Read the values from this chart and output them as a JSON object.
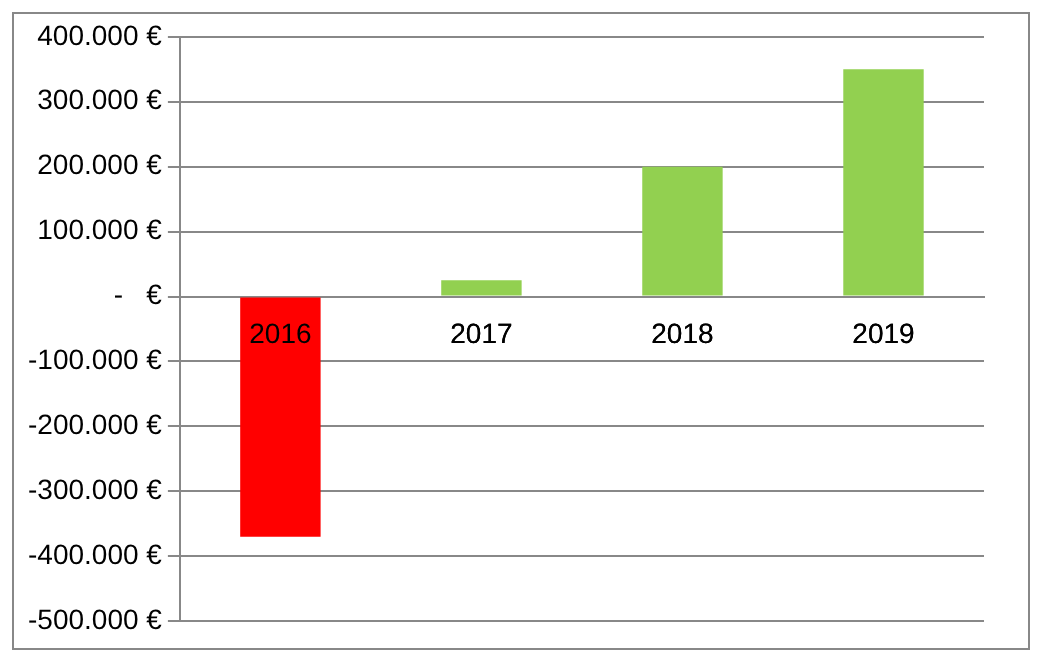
{
  "chart_data": {
    "type": "bar",
    "categories": [
      "2016",
      "2017",
      "2018",
      "2019"
    ],
    "values": [
      -370000,
      25000,
      200000,
      350000
    ],
    "colors": [
      "#ff0000",
      "#92d050",
      "#92d050",
      "#92d050"
    ],
    "ylim": [
      -500000,
      400000
    ],
    "yticks": [
      {
        "value": 400000,
        "label": "400.000 €"
      },
      {
        "value": 300000,
        "label": "300.000 €"
      },
      {
        "value": 200000,
        "label": "200.000 €"
      },
      {
        "value": 100000,
        "label": "100.000 €"
      },
      {
        "value": 0,
        "label": "-   €"
      },
      {
        "value": -100000,
        "label": "-100.000 €"
      },
      {
        "value": -200000,
        "label": "-200.000 €"
      },
      {
        "value": -300000,
        "label": "-300.000 €"
      },
      {
        "value": -400000,
        "label": "-400.000 €"
      },
      {
        "value": -500000,
        "label": "-500.000 €"
      }
    ],
    "grid": "y",
    "legend": false
  }
}
